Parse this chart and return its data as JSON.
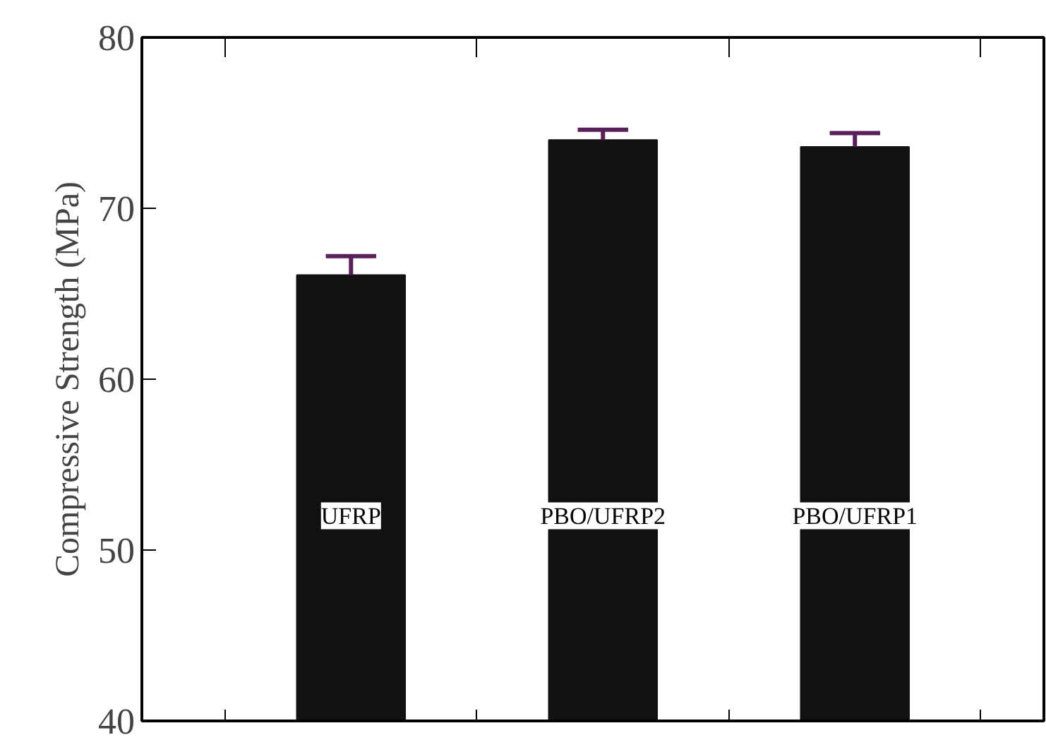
{
  "chart_data": {
    "type": "bar",
    "ylabel": "Compressive Strength (MPa)",
    "categories": [
      "UFRP",
      "PBO/UFRP2",
      "PBO/UFRP1"
    ],
    "values": [
      66.1,
      74.0,
      73.6
    ],
    "errors": [
      [
        66.1,
        67.2
      ],
      [
        74.0,
        74.6
      ],
      [
        73.6,
        74.4
      ]
    ],
    "color": "#111111",
    "ylim": [
      40,
      80
    ],
    "yticks": [
      40,
      50,
      60,
      70,
      80
    ],
    "grid": false,
    "tick_labels": "y"
  }
}
